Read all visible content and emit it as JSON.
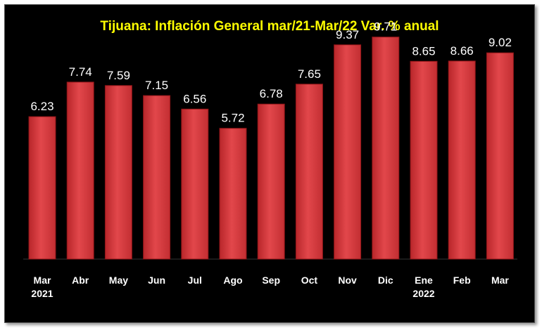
{
  "chart_data": {
    "type": "bar",
    "title": "Tijuana: Inflación General mar/21-Mar/22 Var. % anual",
    "categories": [
      [
        "Mar",
        "2021"
      ],
      [
        "Abr"
      ],
      [
        "May"
      ],
      [
        "Jun"
      ],
      [
        "Jul"
      ],
      [
        "Ago"
      ],
      [
        "Sep"
      ],
      [
        "Oct"
      ],
      [
        "Nov"
      ],
      [
        "Dic"
      ],
      [
        "Ene",
        "2022"
      ],
      [
        "Feb"
      ],
      [
        "Mar"
      ]
    ],
    "values": [
      6.23,
      7.74,
      7.59,
      7.15,
      6.56,
      5.72,
      6.78,
      7.65,
      9.37,
      9.71,
      8.65,
      8.66,
      9.02
    ],
    "value_labels": [
      "6.23",
      "7.74",
      "7.59",
      "7.15",
      "6.56",
      "5.72",
      "6.78",
      "7.65",
      "9.37",
      "9.71",
      "8.65",
      "8.66",
      "9.02"
    ],
    "ylim": [
      0,
      10.5
    ],
    "grid": false,
    "legend": "none",
    "colors": {
      "background": "#000000",
      "bar": "#d93a3e",
      "bar_edge": "#8e1518",
      "title": "#ffff00",
      "labels": "#ffffff"
    }
  }
}
